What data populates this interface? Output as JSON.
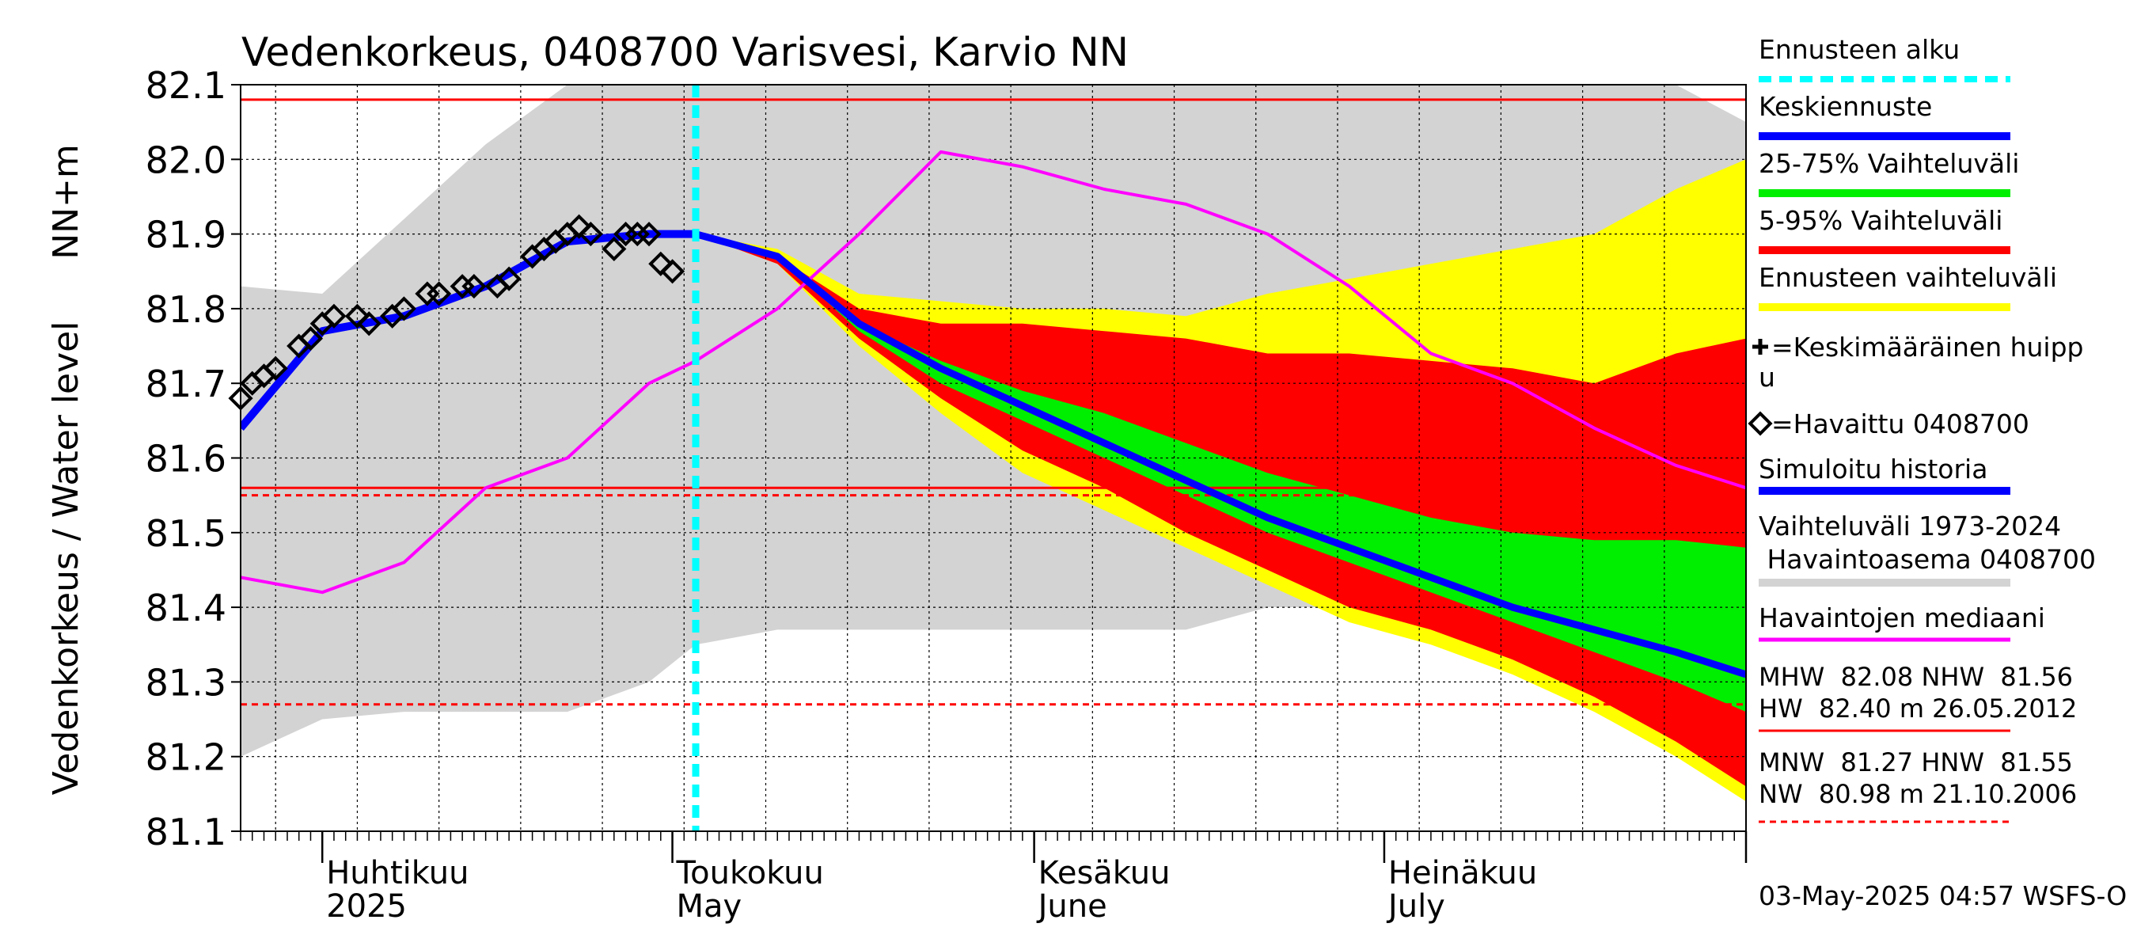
{
  "chart_data": {
    "type": "line",
    "title": "Vedenkorkeus, 0408700 Varisvesi, Karvio NN",
    "ylabel_left": "Vedenkorkeus / Water level",
    "ylabel_unit": "NN+m",
    "ylim": [
      81.1,
      82.1
    ],
    "yticks": [
      "81.1",
      "81.2",
      "81.3",
      "81.4",
      "81.5",
      "81.6",
      "81.7",
      "81.8",
      "81.9",
      "82.0",
      "82.1"
    ],
    "ytick_values": [
      81.1,
      81.2,
      81.3,
      81.4,
      81.5,
      81.6,
      81.7,
      81.8,
      81.9,
      82.0,
      82.1
    ],
    "xlim": [
      "2025-03-25",
      "2025-08-01"
    ],
    "month_labels": [
      {
        "date": "2025-04-01",
        "fi": "Huhtikuu",
        "en": "2025"
      },
      {
        "date": "2025-05-01",
        "fi": "Toukokuu",
        "en": "May"
      },
      {
        "date": "2025-06-01",
        "fi": "Kesäkuu",
        "en": "June"
      },
      {
        "date": "2025-07-01",
        "fi": "Heinäkuu",
        "en": "July"
      }
    ],
    "forecast_start": "2025-05-03",
    "hlines": [
      {
        "value": 82.08,
        "color": "#ff0000",
        "style": "solid"
      },
      {
        "value": 81.56,
        "color": "#ff0000",
        "style": "solid"
      },
      {
        "value": 81.55,
        "color": "#ff0000",
        "style": "dashed"
      },
      {
        "value": 81.27,
        "color": "#ff0000",
        "style": "dashed"
      }
    ],
    "x": [
      "2025-03-25",
      "2025-04-01",
      "2025-04-08",
      "2025-04-15",
      "2025-04-22",
      "2025-04-29",
      "2025-05-03",
      "2025-05-10",
      "2025-05-17",
      "2025-05-24",
      "2025-05-31",
      "2025-06-07",
      "2025-06-14",
      "2025-06-21",
      "2025-06-28",
      "2025-07-05",
      "2025-07-12",
      "2025-07-19",
      "2025-07-26",
      "2025-08-01"
    ],
    "series": [
      {
        "name": "Vaihteluväli 1973-2024 Havaintoasema 0408700 (max)",
        "color": "#d3d3d3",
        "values": [
          81.83,
          81.82,
          81.92,
          82.02,
          82.1,
          82.1,
          82.1,
          82.1,
          82.1,
          82.1,
          82.1,
          82.1,
          82.1,
          82.1,
          82.1,
          82.1,
          82.1,
          82.1,
          82.1,
          82.05
        ]
      },
      {
        "name": "Vaihteluväli 1973-2024 Havaintoasema 0408700 (min)",
        "color": "#d3d3d3",
        "values": [
          81.2,
          81.25,
          81.26,
          81.26,
          81.26,
          81.3,
          81.35,
          81.37,
          81.37,
          81.37,
          81.37,
          81.37,
          81.37,
          81.4,
          81.4,
          81.4,
          81.36,
          81.38,
          81.36,
          81.3
        ]
      },
      {
        "name": "Ennusteen vaihteluväli (max)",
        "color": "#ffff00",
        "values": [
          null,
          null,
          null,
          null,
          null,
          null,
          81.9,
          81.88,
          81.82,
          81.81,
          81.8,
          81.8,
          81.79,
          81.82,
          81.84,
          81.86,
          81.88,
          81.9,
          81.96,
          82.0
        ]
      },
      {
        "name": "Ennusteen vaihteluväli (min)",
        "color": "#ffff00",
        "values": [
          null,
          null,
          null,
          null,
          null,
          null,
          81.9,
          81.86,
          81.75,
          81.66,
          81.58,
          81.53,
          81.48,
          81.43,
          81.38,
          81.35,
          81.31,
          81.26,
          81.2,
          81.14
        ]
      },
      {
        "name": "5-95% Vaihteluväli (max)",
        "color": "#ff0000",
        "values": [
          null,
          null,
          null,
          null,
          null,
          null,
          81.9,
          81.87,
          81.8,
          81.78,
          81.78,
          81.77,
          81.76,
          81.74,
          81.74,
          81.73,
          81.72,
          81.7,
          81.74,
          81.76
        ]
      },
      {
        "name": "5-95% Vaihteluväli (min)",
        "color": "#ff0000",
        "values": [
          null,
          null,
          null,
          null,
          null,
          null,
          81.9,
          81.86,
          81.76,
          81.68,
          81.61,
          81.56,
          81.5,
          81.45,
          81.4,
          81.37,
          81.33,
          81.28,
          81.22,
          81.16
        ]
      },
      {
        "name": "25-75% Vaihteluväli (max)",
        "color": "#00ee00",
        "values": [
          null,
          null,
          null,
          null,
          null,
          null,
          81.9,
          81.87,
          81.78,
          81.73,
          81.69,
          81.66,
          81.62,
          81.58,
          81.55,
          81.52,
          81.5,
          81.49,
          81.49,
          81.48
        ]
      },
      {
        "name": "25-75% Vaihteluväli (min)",
        "color": "#00ee00",
        "values": [
          null,
          null,
          null,
          null,
          null,
          null,
          81.9,
          81.87,
          81.77,
          81.7,
          81.65,
          81.6,
          81.55,
          81.5,
          81.46,
          81.42,
          81.38,
          81.34,
          81.3,
          81.26
        ]
      },
      {
        "name": "Keskiennuste",
        "color": "#0000ff",
        "values": [
          null,
          null,
          null,
          null,
          null,
          null,
          81.9,
          81.87,
          81.78,
          81.72,
          81.67,
          81.62,
          81.57,
          81.52,
          81.48,
          81.44,
          81.4,
          81.37,
          81.34,
          81.31
        ]
      },
      {
        "name": "Simuloitu historia",
        "color": "#0000ff",
        "values": [
          81.64,
          81.77,
          81.79,
          81.83,
          81.89,
          81.9,
          81.9,
          null,
          null,
          null,
          null,
          null,
          null,
          null,
          null,
          null,
          null,
          null,
          null,
          null
        ]
      },
      {
        "name": "Havaintojen mediaani",
        "color": "#ff00ff",
        "values": [
          81.44,
          81.42,
          81.46,
          81.56,
          81.6,
          81.7,
          81.73,
          81.8,
          81.9,
          82.01,
          81.99,
          81.96,
          81.94,
          81.9,
          81.83,
          81.74,
          81.7,
          81.64,
          81.59,
          81.56
        ]
      }
    ],
    "observed": {
      "name": "=Havaittu 0408700",
      "x": [
        "2025-03-25",
        "2025-03-26",
        "2025-03-27",
        "2025-03-28",
        "2025-03-30",
        "2025-03-31",
        "2025-04-01",
        "2025-04-02",
        "2025-04-04",
        "2025-04-05",
        "2025-04-07",
        "2025-04-08",
        "2025-04-10",
        "2025-04-11",
        "2025-04-13",
        "2025-04-14",
        "2025-04-16",
        "2025-04-17",
        "2025-04-19",
        "2025-04-20",
        "2025-04-21",
        "2025-04-22",
        "2025-04-23",
        "2025-04-24",
        "2025-04-26",
        "2025-04-27",
        "2025-04-28",
        "2025-04-29",
        "2025-04-30",
        "2025-05-01"
      ],
      "y": [
        81.68,
        81.7,
        81.71,
        81.72,
        81.75,
        81.76,
        81.78,
        81.79,
        81.79,
        81.78,
        81.79,
        81.8,
        81.82,
        81.82,
        81.83,
        81.83,
        81.83,
        81.84,
        81.87,
        81.88,
        81.89,
        81.9,
        81.91,
        81.9,
        81.88,
        81.9,
        81.9,
        81.9,
        81.86,
        81.85
      ]
    },
    "grid": true,
    "legend_position": "right"
  },
  "legend": {
    "items": [
      {
        "label": "Ennusteen alku",
        "color": "#00ffff",
        "style": "dashed"
      },
      {
        "label": "Keskiennuste",
        "color": "#0000ff",
        "style": "solid"
      },
      {
        "label": "25-75% Vaihteluväli",
        "color": "#00ee00",
        "style": "solid"
      },
      {
        "label": "5-95% Vaihteluväli",
        "color": "#ff0000",
        "style": "solid"
      },
      {
        "label": "Ennusteen vaihteluväli",
        "color": "#ffff00",
        "style": "solid"
      }
    ],
    "peak_line1": "=Keskimääräinen huipp",
    "peak_line2": "u",
    "observed": "=Havaittu 0408700",
    "simulated": "Simuloitu historia",
    "range_line1": "Vaihteluväli 1973-2024",
    "range_line2": " Havaintoasema 0408700",
    "median": "Havaintojen mediaani",
    "mhw_line1": "MHW  82.08 NHW  81.56",
    "mhw_line2": "HW  82.40 m 26.05.2012",
    "mnw_line1": "MNW  81.27 HNW  81.55",
    "mnw_line2": "NW  80.98 m 21.10.2006",
    "timestamp": "03-May-2025 04:57 WSFS-O"
  }
}
